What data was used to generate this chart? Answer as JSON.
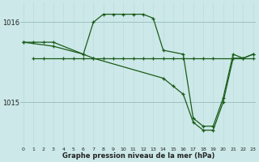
{
  "bg_color": "#cce8e8",
  "line_color": "#1a5c1a",
  "grid_color": "#bbdddd",
  "y_ticks": [
    1015,
    1016
  ],
  "x_ticks": [
    0,
    1,
    2,
    3,
    4,
    5,
    6,
    7,
    8,
    9,
    10,
    11,
    12,
    13,
    14,
    15,
    16,
    17,
    18,
    19,
    20,
    21,
    22,
    23
  ],
  "xlim": [
    -0.3,
    23.3
  ],
  "ylim": [
    1014.45,
    1016.25
  ],
  "xlabel": "Graphe pression niveau de la mer (hPa)",
  "series": [
    {
      "x": [
        0,
        1,
        2,
        3,
        6,
        7,
        8,
        9,
        10,
        11,
        12,
        13,
        14,
        16,
        17,
        18,
        19,
        20,
        21,
        22,
        23
      ],
      "y": [
        1015.75,
        1015.75,
        1015.75,
        1015.75,
        1015.6,
        1016.0,
        1016.1,
        1016.1,
        1016.1,
        1016.1,
        1016.1,
        1016.05,
        1015.65,
        1015.6,
        1014.8,
        1014.7,
        1014.7,
        1015.05,
        1015.6,
        1015.55,
        1015.6
      ]
    },
    {
      "x": [
        1,
        2,
        4,
        5,
        6,
        7,
        8,
        9,
        10,
        11,
        12,
        13,
        14,
        15,
        16,
        17,
        18,
        19,
        23
      ],
      "y": [
        1015.55,
        1015.55,
        1015.55,
        1015.55,
        1015.55,
        1015.55,
        1015.55,
        1015.55,
        1015.55,
        1015.55,
        1015.55,
        1015.55,
        1015.55,
        1015.55,
        1015.55,
        1015.55,
        1015.55,
        1015.55,
        1015.55
      ]
    },
    {
      "x": [
        0,
        3,
        6,
        7,
        14,
        15,
        16,
        17,
        18,
        19,
        20,
        21,
        22,
        23
      ],
      "y": [
        1015.75,
        1015.7,
        1015.6,
        1015.55,
        1015.3,
        1015.2,
        1015.1,
        1014.75,
        1014.65,
        1014.65,
        1015.0,
        1015.55,
        1015.55,
        1015.6
      ]
    }
  ]
}
